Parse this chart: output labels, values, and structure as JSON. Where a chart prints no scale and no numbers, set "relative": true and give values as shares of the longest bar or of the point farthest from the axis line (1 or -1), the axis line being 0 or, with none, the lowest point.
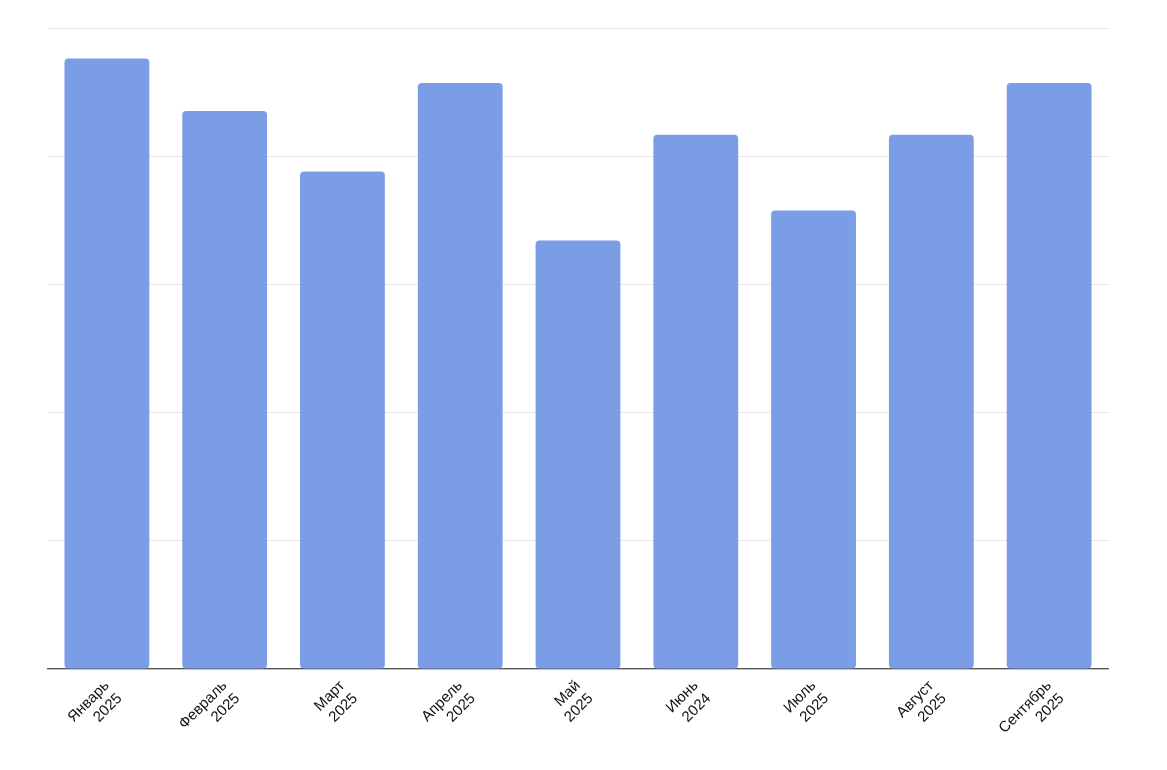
{
  "chart_data": {
    "type": "bar",
    "relative": true,
    "categories": [
      "Январь 2025",
      "Февраль 2025",
      "Март 2025",
      "Апрель 2025",
      "Май 2025",
      "Июнь 2024",
      "Июль 2025",
      "Август 2025",
      "Сентябрь 2025"
    ],
    "values": [
      1,
      0.914,
      0.815,
      0.96,
      0.702,
      0.875,
      0.751,
      0.875,
      0.96
    ],
    "color": "#7b9de6",
    "grid": "y",
    "legend": false
  }
}
